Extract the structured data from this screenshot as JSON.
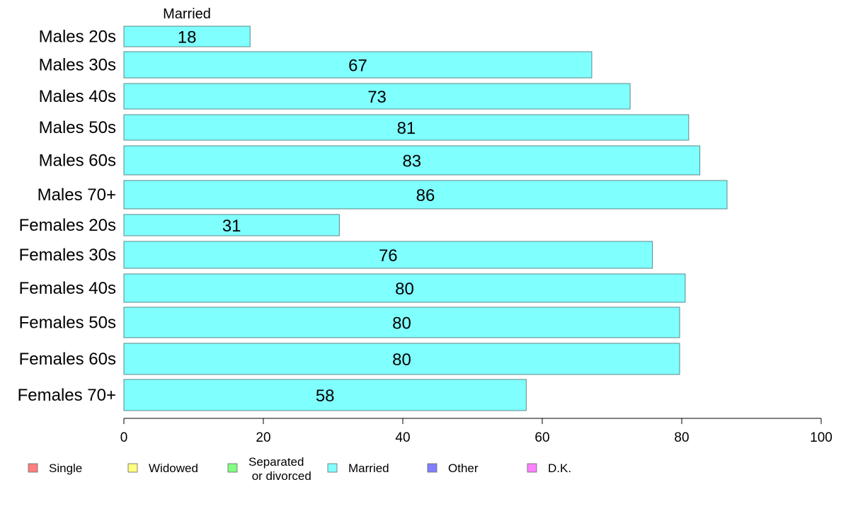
{
  "chart_data": {
    "type": "bar",
    "orientation": "horizontal",
    "stacked": true,
    "categories": [
      "Males 20s",
      "Males 30s",
      "Males 40s",
      "Males 50s",
      "Males 60s",
      "Males 70+",
      "Females 20s",
      "Females 30s",
      "Females 40s",
      "Females 50s",
      "Females 60s",
      "Females 70+"
    ],
    "series": [
      {
        "name": "Married",
        "color": "#80ffff",
        "values": [
          18.1,
          67.1,
          72.6,
          81.0,
          82.6,
          86.5,
          30.9,
          75.8,
          80.5,
          79.7,
          79.7,
          57.7
        ],
        "labels": [
          "18",
          "67",
          "73",
          "81",
          "83",
          "86",
          "31",
          "76",
          "80",
          "80",
          "80",
          "58"
        ]
      }
    ],
    "series_heading": "Married",
    "xlim": [
      0,
      100
    ],
    "xticks": [
      0,
      20,
      40,
      60,
      80,
      100
    ],
    "xlabel": "",
    "ylabel": "",
    "grid": false,
    "legend": {
      "position": "bottom",
      "items": [
        {
          "label": "Single",
          "color": "#ff8080"
        },
        {
          "label": "Widowed",
          "color": "#ffff80"
        },
        {
          "label": "Separated\n or divorced",
          "color": "#80ff80"
        },
        {
          "label": "Married",
          "color": "#80ffff"
        },
        {
          "label": "Other",
          "color": "#8080ff"
        },
        {
          "label": "D.K.",
          "color": "#ff80ff"
        }
      ]
    }
  }
}
